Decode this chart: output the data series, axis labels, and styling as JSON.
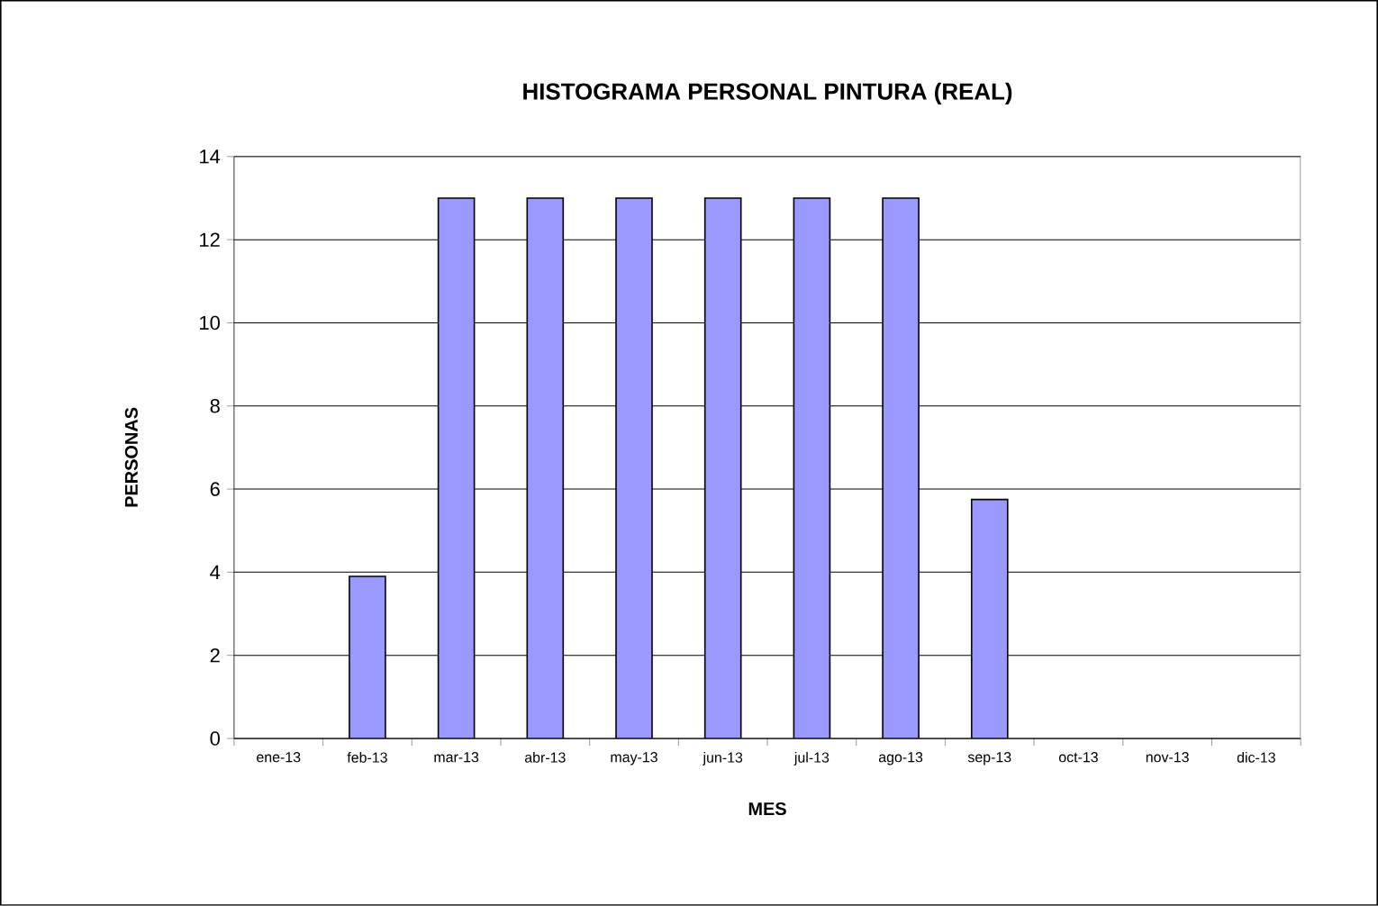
{
  "chart_data": {
    "type": "bar",
    "title": "HISTOGRAMA PERSONAL PINTURA (REAL)",
    "xlabel": "MES",
    "ylabel": "PERSONAS",
    "categories": [
      "ene-13",
      "feb-13",
      "mar-13",
      "abr-13",
      "may-13",
      "jun-13",
      "jul-13",
      "ago-13",
      "sep-13",
      "oct-13",
      "nov-13",
      "dic-13"
    ],
    "values": [
      null,
      3.9,
      13,
      13,
      13,
      13,
      13,
      13,
      5.75,
      null,
      null,
      null
    ],
    "color": "#9999ff",
    "ylim": [
      0,
      14
    ],
    "yticks": [
      0,
      2,
      4,
      6,
      8,
      10,
      12,
      14
    ],
    "grid": "y"
  }
}
